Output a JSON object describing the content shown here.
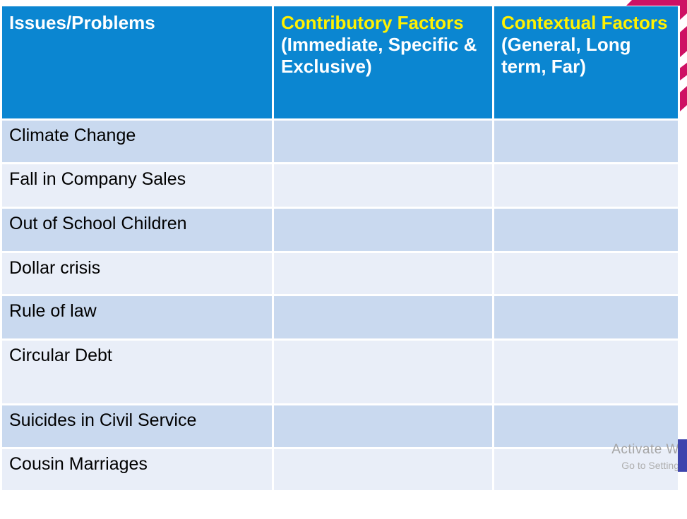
{
  "table": {
    "header": [
      {
        "title": "Issues/Problems",
        "subtitle": ""
      },
      {
        "title": "Contributory Factors",
        "subtitle": "(Immediate, Specific & Exclusive)"
      },
      {
        "title": "Contextual Factors",
        "subtitle": "(General, Long term, Far)"
      }
    ],
    "rows": [
      "Climate Change",
      "Fall in Company Sales",
      "Out of School Children",
      "Dollar crisis",
      "Rule of law",
      "Circular Debt",
      "Suicides in Civil Service",
      "Cousin Marriages"
    ]
  },
  "watermark": {
    "line1": "Activate W",
    "line2": "Go to Setting"
  },
  "colors": {
    "header_bg": "#0b86d1",
    "header_highlight": "#fff101",
    "row_dark": "#c9d9ef",
    "row_light": "#e9eef8",
    "ribbon": "#ce1164",
    "corner_block": "#3d44ad"
  }
}
